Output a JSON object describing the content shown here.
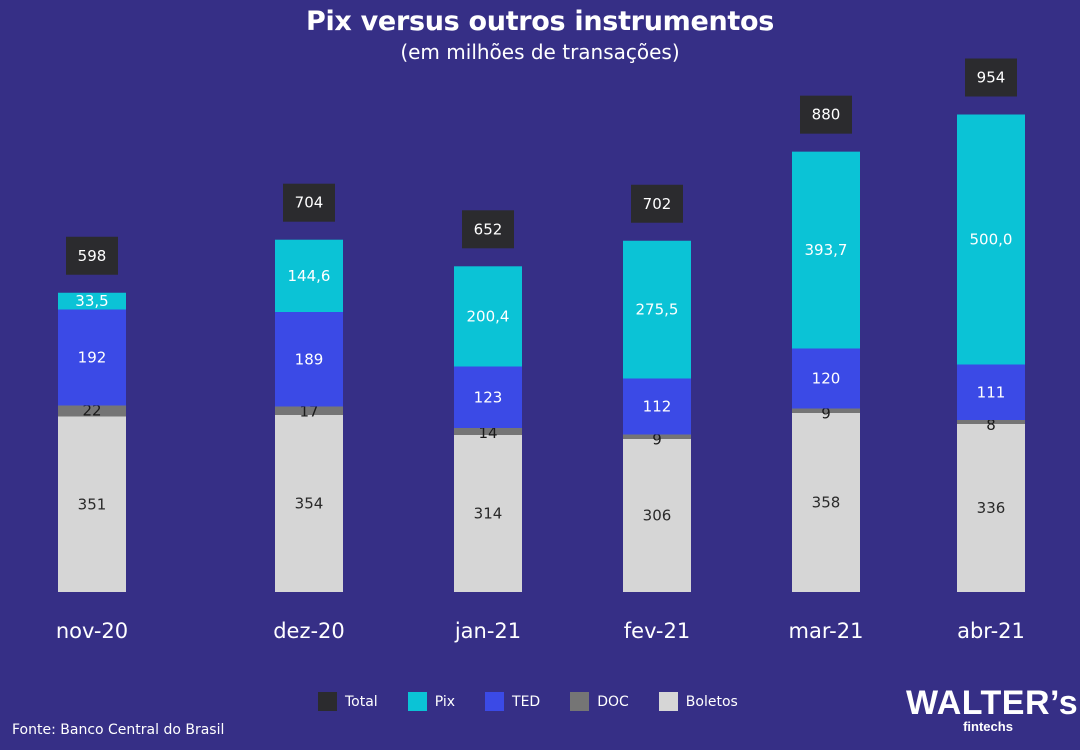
{
  "colors": {
    "background": "#362f86",
    "Total": "#2b2b2e",
    "Pix": "#0bc3d6",
    "TED": "#3b4ae6",
    "DOC": "#757575",
    "Boletos": "#d6d6d6"
  },
  "legend": {
    "items": [
      {
        "label": "Total",
        "color": "#2b2b2e"
      },
      {
        "label": "Pix",
        "color": "#0bc3d6"
      },
      {
        "label": "TED",
        "color": "#3b4ae6"
      },
      {
        "label": "DOC",
        "color": "#757575"
      },
      {
        "label": "Boletos",
        "color": "#d6d6d6"
      }
    ]
  },
  "source": "Fonte: Banco Central do Brasil",
  "logo": {
    "main": "WALTER’s",
    "sub": "fintechs"
  },
  "chart_data": {
    "type": "bar",
    "stacked": true,
    "title": "Pix versus outros instrumentos",
    "subtitle": "(em milhões de transações)",
    "categories": [
      "nov-20",
      "dez-20",
      "jan-21",
      "fev-21",
      "mar-21",
      "abr-21"
    ],
    "series": [
      {
        "name": "Boletos",
        "values": [
          351,
          354,
          314,
          306,
          358,
          336
        ],
        "labels": [
          "351",
          "354",
          "314",
          "306",
          "358",
          "336"
        ]
      },
      {
        "name": "DOC",
        "values": [
          22,
          17,
          14,
          9,
          9,
          8
        ],
        "labels": [
          "22",
          "17",
          "14",
          "9",
          "9",
          "8"
        ]
      },
      {
        "name": "TED",
        "values": [
          192,
          189,
          123,
          112,
          120,
          111
        ],
        "labels": [
          "192",
          "189",
          "123",
          "112",
          "120",
          "111"
        ]
      },
      {
        "name": "Pix",
        "values": [
          33.5,
          144.6,
          200.4,
          275.5,
          393.7,
          500.0
        ],
        "labels": [
          "33,5",
          "144,6",
          "200,4",
          "275,5",
          "393,7",
          "500,0"
        ]
      }
    ],
    "totals": {
      "name": "Total",
      "values": [
        598,
        704,
        652,
        702,
        880,
        954
      ],
      "labels": [
        "598",
        "704",
        "652",
        "702",
        "880",
        "954"
      ]
    },
    "grid": false,
    "legend_position": "bottom"
  }
}
